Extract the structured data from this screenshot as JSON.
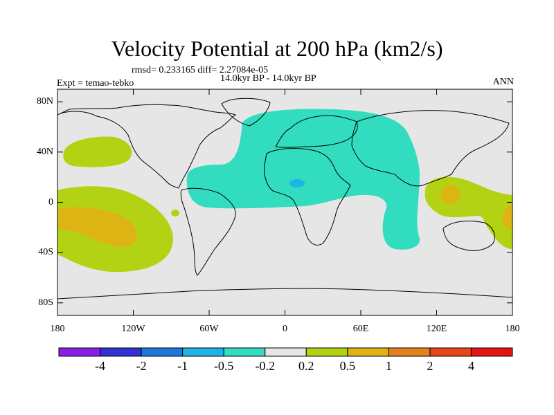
{
  "title": "Velocity Potential at 200 hPa (km2/s)",
  "stats": "rmsd= 0.233165 diff= 2.27084e-05",
  "left_label": "Expt = temao-tebko",
  "center_label": "14.0kyr BP - 14.0kyr BP",
  "right_label": "ANN",
  "map": {
    "projection": "cylindrical equidistant",
    "lon_range": [
      -180,
      180
    ],
    "lat_range": [
      -90,
      90
    ],
    "background_color": "#e6e6e6",
    "lat_ticks": [
      {
        "value": 80,
        "label": "80N"
      },
      {
        "value": 40,
        "label": "40N"
      },
      {
        "value": 0,
        "label": "0"
      },
      {
        "value": -40,
        "label": "40S"
      },
      {
        "value": -80,
        "label": "80S"
      }
    ],
    "lon_ticks": [
      {
        "value": -180,
        "label": "180"
      },
      {
        "value": -120,
        "label": "120W"
      },
      {
        "value": -60,
        "label": "60W"
      },
      {
        "value": 0,
        "label": "0"
      },
      {
        "value": 60,
        "label": "60E"
      },
      {
        "value": 120,
        "label": "120E"
      },
      {
        "value": 180,
        "label": "180"
      }
    ]
  },
  "colorbar": {
    "colors": [
      "#8a1ee6",
      "#3232d2",
      "#1e78dc",
      "#1eb4e6",
      "#32dcbe",
      "#e6e6e6",
      "#b4d214",
      "#dcb414",
      "#e6821e",
      "#e6461e",
      "#e61414"
    ],
    "labels": [
      "-4",
      "-2",
      "-1",
      "-0.5",
      "-0.2",
      "0.2",
      "0.5",
      "1",
      "2",
      "4"
    ]
  },
  "chart_data": {
    "type": "heatmap",
    "title": "Velocity Potential at 200 hPa (km2/s)",
    "variable": "velocity potential anomaly",
    "units": "km2/s",
    "levels": [
      -4,
      -2,
      -1,
      -0.5,
      -0.2,
      0.2,
      0.5,
      1,
      2,
      4
    ],
    "regions": [
      {
        "name": "Atlantic-Africa-Eurasia negative center",
        "level_range": [
          -0.5,
          -0.2
        ],
        "color": "#32dcbe"
      },
      {
        "name": "Central Africa minimum",
        "level_range": [
          -1,
          -0.5
        ],
        "color": "#1eb4e6"
      },
      {
        "name": "Maritime Continent positive",
        "level_range": [
          0.2,
          0.5
        ],
        "color": "#b4d214"
      },
      {
        "name": "Maritime Continent maximum",
        "level_range": [
          0.5,
          1
        ],
        "color": "#dcb414"
      },
      {
        "name": "Central Pacific positive",
        "level_range": [
          0.2,
          0.5
        ],
        "color": "#b4d214"
      },
      {
        "name": "Central Pacific maximum",
        "level_range": [
          0.5,
          1
        ],
        "color": "#dcb414"
      },
      {
        "name": "North Pacific positive",
        "level_range": [
          0.2,
          0.5
        ],
        "color": "#b4d214"
      }
    ]
  }
}
